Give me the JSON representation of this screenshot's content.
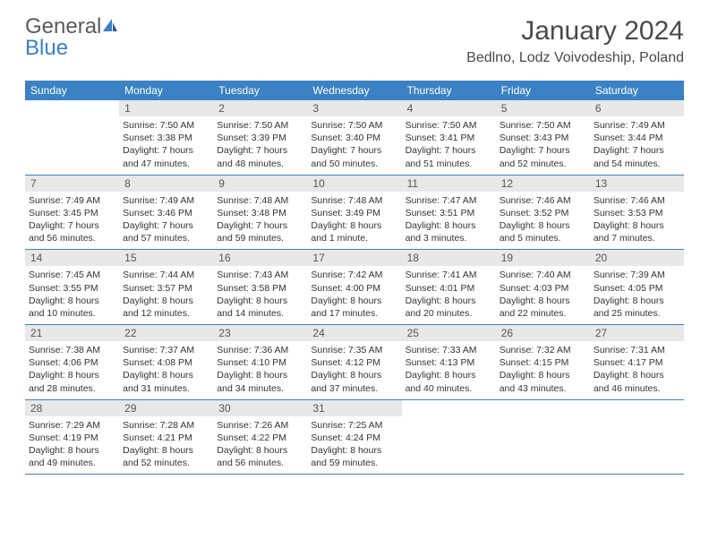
{
  "logo": {
    "text1": "General",
    "text2": "Blue"
  },
  "title": "January 2024",
  "location": "Bedlno, Lodz Voivodeship, Poland",
  "colors": {
    "header_bar": "#3b82c4",
    "header_text": "#ffffff",
    "daynum_bg": "#e8e8e8",
    "week_divider": "#3b82c4",
    "body_text": "#333333",
    "title_text": "#4a4a4a"
  },
  "day_names": [
    "Sunday",
    "Monday",
    "Tuesday",
    "Wednesday",
    "Thursday",
    "Friday",
    "Saturday"
  ],
  "weeks": [
    [
      {
        "n": "",
        "sr": "",
        "ss": "",
        "dl": ""
      },
      {
        "n": "1",
        "sr": "Sunrise: 7:50 AM",
        "ss": "Sunset: 3:38 PM",
        "dl": "Daylight: 7 hours and 47 minutes."
      },
      {
        "n": "2",
        "sr": "Sunrise: 7:50 AM",
        "ss": "Sunset: 3:39 PM",
        "dl": "Daylight: 7 hours and 48 minutes."
      },
      {
        "n": "3",
        "sr": "Sunrise: 7:50 AM",
        "ss": "Sunset: 3:40 PM",
        "dl": "Daylight: 7 hours and 50 minutes."
      },
      {
        "n": "4",
        "sr": "Sunrise: 7:50 AM",
        "ss": "Sunset: 3:41 PM",
        "dl": "Daylight: 7 hours and 51 minutes."
      },
      {
        "n": "5",
        "sr": "Sunrise: 7:50 AM",
        "ss": "Sunset: 3:43 PM",
        "dl": "Daylight: 7 hours and 52 minutes."
      },
      {
        "n": "6",
        "sr": "Sunrise: 7:49 AM",
        "ss": "Sunset: 3:44 PM",
        "dl": "Daylight: 7 hours and 54 minutes."
      }
    ],
    [
      {
        "n": "7",
        "sr": "Sunrise: 7:49 AM",
        "ss": "Sunset: 3:45 PM",
        "dl": "Daylight: 7 hours and 56 minutes."
      },
      {
        "n": "8",
        "sr": "Sunrise: 7:49 AM",
        "ss": "Sunset: 3:46 PM",
        "dl": "Daylight: 7 hours and 57 minutes."
      },
      {
        "n": "9",
        "sr": "Sunrise: 7:48 AM",
        "ss": "Sunset: 3:48 PM",
        "dl": "Daylight: 7 hours and 59 minutes."
      },
      {
        "n": "10",
        "sr": "Sunrise: 7:48 AM",
        "ss": "Sunset: 3:49 PM",
        "dl": "Daylight: 8 hours and 1 minute."
      },
      {
        "n": "11",
        "sr": "Sunrise: 7:47 AM",
        "ss": "Sunset: 3:51 PM",
        "dl": "Daylight: 8 hours and 3 minutes."
      },
      {
        "n": "12",
        "sr": "Sunrise: 7:46 AM",
        "ss": "Sunset: 3:52 PM",
        "dl": "Daylight: 8 hours and 5 minutes."
      },
      {
        "n": "13",
        "sr": "Sunrise: 7:46 AM",
        "ss": "Sunset: 3:53 PM",
        "dl": "Daylight: 8 hours and 7 minutes."
      }
    ],
    [
      {
        "n": "14",
        "sr": "Sunrise: 7:45 AM",
        "ss": "Sunset: 3:55 PM",
        "dl": "Daylight: 8 hours and 10 minutes."
      },
      {
        "n": "15",
        "sr": "Sunrise: 7:44 AM",
        "ss": "Sunset: 3:57 PM",
        "dl": "Daylight: 8 hours and 12 minutes."
      },
      {
        "n": "16",
        "sr": "Sunrise: 7:43 AM",
        "ss": "Sunset: 3:58 PM",
        "dl": "Daylight: 8 hours and 14 minutes."
      },
      {
        "n": "17",
        "sr": "Sunrise: 7:42 AM",
        "ss": "Sunset: 4:00 PM",
        "dl": "Daylight: 8 hours and 17 minutes."
      },
      {
        "n": "18",
        "sr": "Sunrise: 7:41 AM",
        "ss": "Sunset: 4:01 PM",
        "dl": "Daylight: 8 hours and 20 minutes."
      },
      {
        "n": "19",
        "sr": "Sunrise: 7:40 AM",
        "ss": "Sunset: 4:03 PM",
        "dl": "Daylight: 8 hours and 22 minutes."
      },
      {
        "n": "20",
        "sr": "Sunrise: 7:39 AM",
        "ss": "Sunset: 4:05 PM",
        "dl": "Daylight: 8 hours and 25 minutes."
      }
    ],
    [
      {
        "n": "21",
        "sr": "Sunrise: 7:38 AM",
        "ss": "Sunset: 4:06 PM",
        "dl": "Daylight: 8 hours and 28 minutes."
      },
      {
        "n": "22",
        "sr": "Sunrise: 7:37 AM",
        "ss": "Sunset: 4:08 PM",
        "dl": "Daylight: 8 hours and 31 minutes."
      },
      {
        "n": "23",
        "sr": "Sunrise: 7:36 AM",
        "ss": "Sunset: 4:10 PM",
        "dl": "Daylight: 8 hours and 34 minutes."
      },
      {
        "n": "24",
        "sr": "Sunrise: 7:35 AM",
        "ss": "Sunset: 4:12 PM",
        "dl": "Daylight: 8 hours and 37 minutes."
      },
      {
        "n": "25",
        "sr": "Sunrise: 7:33 AM",
        "ss": "Sunset: 4:13 PM",
        "dl": "Daylight: 8 hours and 40 minutes."
      },
      {
        "n": "26",
        "sr": "Sunrise: 7:32 AM",
        "ss": "Sunset: 4:15 PM",
        "dl": "Daylight: 8 hours and 43 minutes."
      },
      {
        "n": "27",
        "sr": "Sunrise: 7:31 AM",
        "ss": "Sunset: 4:17 PM",
        "dl": "Daylight: 8 hours and 46 minutes."
      }
    ],
    [
      {
        "n": "28",
        "sr": "Sunrise: 7:29 AM",
        "ss": "Sunset: 4:19 PM",
        "dl": "Daylight: 8 hours and 49 minutes."
      },
      {
        "n": "29",
        "sr": "Sunrise: 7:28 AM",
        "ss": "Sunset: 4:21 PM",
        "dl": "Daylight: 8 hours and 52 minutes."
      },
      {
        "n": "30",
        "sr": "Sunrise: 7:26 AM",
        "ss": "Sunset: 4:22 PM",
        "dl": "Daylight: 8 hours and 56 minutes."
      },
      {
        "n": "31",
        "sr": "Sunrise: 7:25 AM",
        "ss": "Sunset: 4:24 PM",
        "dl": "Daylight: 8 hours and 59 minutes."
      },
      {
        "n": "",
        "sr": "",
        "ss": "",
        "dl": ""
      },
      {
        "n": "",
        "sr": "",
        "ss": "",
        "dl": ""
      },
      {
        "n": "",
        "sr": "",
        "ss": "",
        "dl": ""
      }
    ]
  ]
}
